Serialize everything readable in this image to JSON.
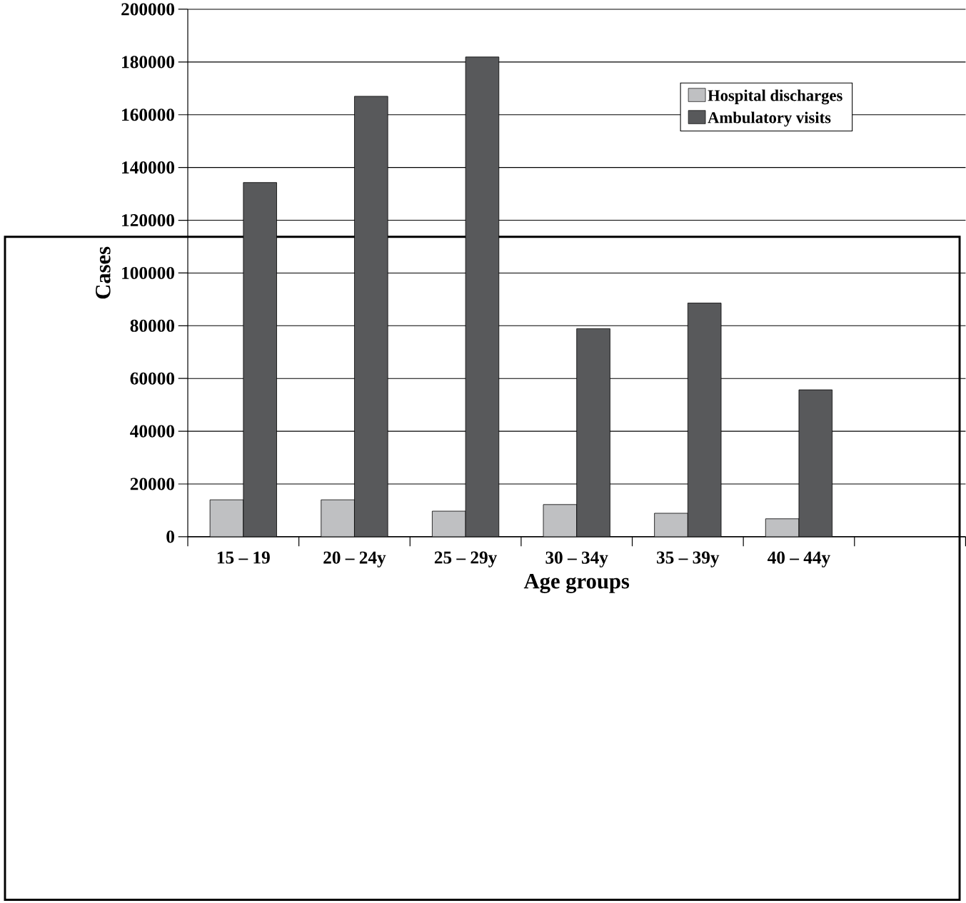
{
  "chart_data": {
    "type": "bar",
    "xlabel": "Age groups",
    "ylabel": "Cases",
    "categories": [
      "15 – 19",
      "20 – 24y",
      "25 – 29y",
      "30 – 34y",
      "35 – 39y",
      "40 – 44y",
      null
    ],
    "series": [
      {
        "name": "Hospital discharges",
        "color": "#bfc0c2",
        "values": [
          14000,
          14000,
          9700,
          12200,
          8900,
          6800,
          null
        ]
      },
      {
        "name": "Ambulatory visits",
        "color": "#58595b",
        "values": [
          134300,
          167000,
          181900,
          78900,
          88600,
          55700,
          null
        ]
      }
    ],
    "ylim": [
      0,
      200000
    ],
    "yticks": [
      0,
      20000,
      40000,
      60000,
      80000,
      100000,
      120000,
      140000,
      160000,
      180000,
      200000
    ],
    "grid": "y",
    "legend": "top right"
  }
}
